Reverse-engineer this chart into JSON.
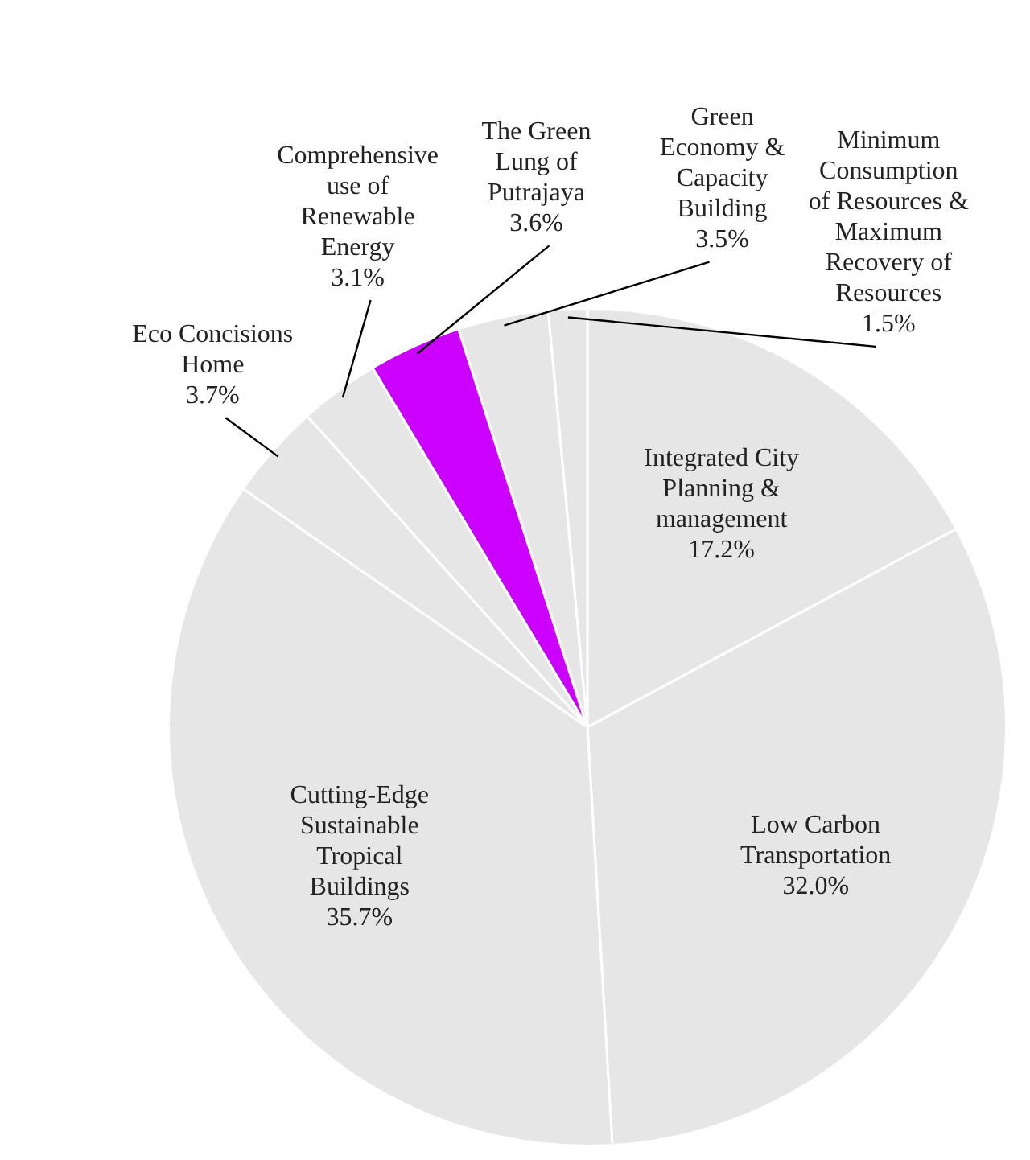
{
  "chart_data": {
    "type": "pie",
    "categories": [
      "Integrated City Planning & management",
      "Low Carbon Transportation",
      "Cutting-Edge Sustainable Tropical Buildings",
      "Eco Concisions Home",
      "Comprehensive use of Renewable Energy",
      "The Green Lung of Putrajaya",
      "Green Economy & Capacity Building",
      "Minimum Consumption of Resources & Maximum Recovery of Resources"
    ],
    "values": [
      17.2,
      32.0,
      35.7,
      3.7,
      3.1,
      3.6,
      3.5,
      1.5
    ],
    "value_labels": [
      "17.2%",
      "32.0%",
      "35.7%",
      "3.7%",
      "3.1%",
      "3.6%",
      "3.5%",
      "1.5%"
    ],
    "colors": [
      "#e6e6e6",
      "#e6e6e6",
      "#e6e6e6",
      "#e6e6e6",
      "#e6e6e6",
      "#cc00ff",
      "#e6e6e6",
      "#e6e6e6"
    ],
    "legend": false
  }
}
